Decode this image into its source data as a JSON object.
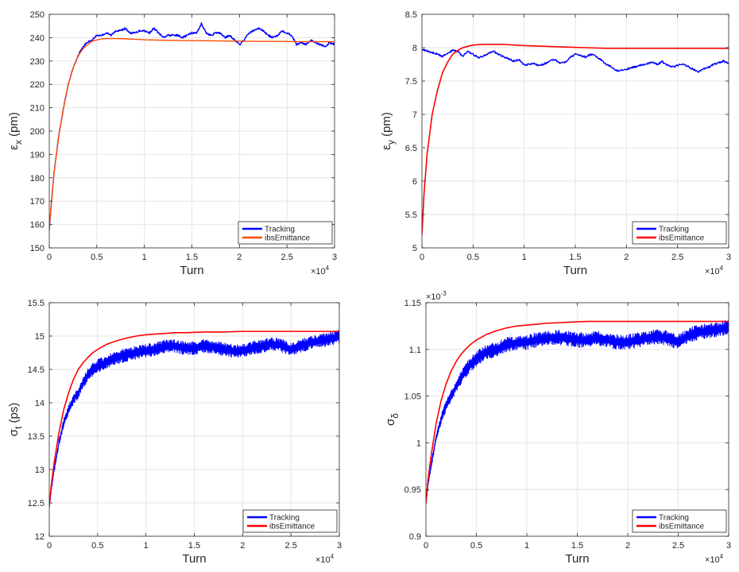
{
  "colors": {
    "tracking": "#0000ff",
    "ibs_red": "#ff0000",
    "ibs_orange": "#ff4a00",
    "axis": "#262626",
    "grid": "#e6e6e6"
  },
  "chart_data": [
    {
      "id": "ex",
      "type": "line",
      "title": "",
      "xlabel": "Turn",
      "ylabel_main": "ε",
      "ylabel_sub": "x",
      "ylabel_unit": " (pm)",
      "xlim": [
        0,
        30000
      ],
      "ylim": [
        150,
        250
      ],
      "x_ticks": [
        0,
        5000,
        10000,
        15000,
        20000,
        25000,
        30000
      ],
      "x_tick_labels": [
        "0",
        "0.5",
        "1",
        "1.5",
        "2",
        "2.5",
        "3"
      ],
      "y_ticks": [
        150,
        160,
        170,
        180,
        190,
        200,
        210,
        220,
        230,
        240,
        250
      ],
      "y_tick_labels": [
        "150",
        "160",
        "170",
        "180",
        "190",
        "200",
        "210",
        "220",
        "230",
        "240",
        "250"
      ],
      "x_exponent_base": "×10",
      "x_exponent_power": "4",
      "y_exponent_base": "",
      "y_exponent_power": "",
      "legend": [
        "Tracking",
        "ibsEmittance"
      ],
      "legend_position": "bottom-right",
      "series": [
        {
          "name": "Tracking",
          "color": "#0000ff",
          "width": 1.4,
          "x": [
            0,
            200,
            500,
            1000,
            1500,
            2000,
            2500,
            3000,
            3500,
            4000,
            4500,
            5000,
            5500,
            6000,
            6500,
            7000,
            7500,
            8000,
            8500,
            9000,
            9500,
            10000,
            10500,
            11000,
            11500,
            12000,
            12500,
            13000,
            13500,
            14000,
            14500,
            15000,
            15500,
            16000,
            16500,
            17000,
            17500,
            18000,
            18500,
            19000,
            19500,
            20000,
            20500,
            21000,
            21500,
            22000,
            22500,
            23000,
            23500,
            24000,
            24500,
            25000,
            25500,
            26000,
            26500,
            27000,
            27500,
            28000,
            28500,
            29000,
            29500,
            30000
          ],
          "y": [
            158,
            168,
            182,
            198,
            210,
            220,
            227,
            232,
            236,
            238,
            239,
            241,
            241,
            242,
            241,
            243,
            243,
            244,
            242,
            242,
            243,
            243,
            242,
            244,
            242,
            240,
            241,
            241,
            241,
            240,
            241,
            242,
            242,
            246,
            242,
            241,
            242,
            242,
            240,
            241,
            239,
            237,
            239,
            242,
            243,
            244,
            243,
            241,
            240,
            241,
            243,
            242,
            241,
            237,
            238,
            237,
            239,
            238,
            237,
            236,
            238,
            237
          ]
        },
        {
          "name": "ibsEmittance",
          "color": "#ff4a00",
          "width": 1.4,
          "x": [
            0,
            200,
            500,
            1000,
            1500,
            2000,
            2500,
            3000,
            3500,
            4000,
            4500,
            5000,
            5500,
            6000,
            7000,
            8000,
            9000,
            10000,
            12000,
            14000,
            16000,
            18000,
            20000,
            22000,
            24000,
            26000,
            28000,
            30000
          ],
          "y": [
            158,
            168,
            182,
            198,
            210,
            220,
            227,
            232,
            235,
            237,
            238.5,
            239,
            239.5,
            239.6,
            239.6,
            239.5,
            239.3,
            239.1,
            238.9,
            238.8,
            238.7,
            238.6,
            238.5,
            238.4,
            238.4,
            238.3,
            238.3,
            238.3
          ]
        }
      ]
    },
    {
      "id": "ey",
      "type": "line",
      "title": "",
      "xlabel": "Turn",
      "ylabel_main": "ε",
      "ylabel_sub": "y",
      "ylabel_unit": " (pm)",
      "xlim": [
        0,
        30000
      ],
      "ylim": [
        5,
        8.5
      ],
      "x_ticks": [
        0,
        5000,
        10000,
        15000,
        20000,
        25000,
        30000
      ],
      "x_tick_labels": [
        "0",
        "0.5",
        "1",
        "1.5",
        "2",
        "2.5",
        "3"
      ],
      "y_ticks": [
        5,
        5.5,
        6,
        6.5,
        7,
        7.5,
        8,
        8.5
      ],
      "y_tick_labels": [
        "5",
        "5.5",
        "6",
        "6.5",
        "7",
        "7.5",
        "8",
        "8.5"
      ],
      "x_exponent_base": "×10",
      "x_exponent_power": "4",
      "y_exponent_base": "",
      "y_exponent_power": "",
      "legend": [
        "Tracking",
        "ibsEmittance"
      ],
      "legend_position": "bottom-right",
      "series": [
        {
          "name": "Tracking",
          "color": "#0000ff",
          "width": 1.4,
          "x": [
            0,
            500,
            1000,
            1500,
            2000,
            2500,
            3000,
            3500,
            4000,
            4500,
            5000,
            5500,
            6000,
            6500,
            7000,
            7500,
            8000,
            8500,
            9000,
            9500,
            10000,
            10500,
            11000,
            11500,
            12000,
            12500,
            13000,
            13500,
            14000,
            14500,
            15000,
            15500,
            16000,
            16500,
            17000,
            17500,
            18000,
            18500,
            19000,
            19500,
            20000,
            20500,
            21000,
            21500,
            22000,
            22500,
            23000,
            23500,
            24000,
            24500,
            25000,
            25500,
            26000,
            26500,
            27000,
            27500,
            28000,
            28500,
            29000,
            29500,
            30000
          ],
          "y": [
            7.98,
            7.95,
            7.93,
            7.9,
            7.87,
            7.92,
            7.96,
            7.94,
            7.88,
            7.95,
            7.9,
            7.85,
            7.87,
            7.92,
            7.94,
            7.9,
            7.86,
            7.83,
            7.8,
            7.82,
            7.74,
            7.75,
            7.76,
            7.73,
            7.76,
            7.8,
            7.82,
            7.77,
            7.78,
            7.85,
            7.9,
            7.88,
            7.86,
            7.9,
            7.87,
            7.82,
            7.75,
            7.72,
            7.65,
            7.66,
            7.68,
            7.7,
            7.72,
            7.74,
            7.76,
            7.78,
            7.75,
            7.79,
            7.74,
            7.71,
            7.73,
            7.75,
            7.72,
            7.68,
            7.63,
            7.68,
            7.7,
            7.75,
            7.77,
            7.8,
            7.76
          ]
        },
        {
          "name": "ibsEmittance",
          "color": "#ff0000",
          "width": 1.6,
          "x": [
            0,
            200,
            500,
            1000,
            1500,
            2000,
            2500,
            3000,
            3500,
            4000,
            4500,
            5000,
            6000,
            7000,
            8000,
            9000,
            10000,
            12000,
            14000,
            16000,
            18000,
            20000,
            22000,
            24000,
            26000,
            28000,
            30000
          ],
          "y": [
            5.2,
            5.8,
            6.4,
            7.0,
            7.35,
            7.62,
            7.78,
            7.9,
            7.96,
            8.0,
            8.02,
            8.04,
            8.05,
            8.05,
            8.05,
            8.04,
            8.03,
            8.02,
            8.01,
            8.0,
            7.99,
            7.99,
            7.99,
            7.99,
            7.99,
            7.99,
            7.99
          ]
        }
      ]
    },
    {
      "id": "st",
      "type": "line",
      "title": "",
      "xlabel": "Turn",
      "ylabel_main": "σ",
      "ylabel_sub": "t",
      "ylabel_unit": " (ps)",
      "xlim": [
        0,
        30000
      ],
      "ylim": [
        12,
        15.5
      ],
      "x_ticks": [
        0,
        5000,
        10000,
        15000,
        20000,
        25000,
        30000
      ],
      "x_tick_labels": [
        "0",
        "0.5",
        "1",
        "1.5",
        "2",
        "2.5",
        "3"
      ],
      "y_ticks": [
        12,
        12.5,
        13,
        13.5,
        14,
        14.5,
        15,
        15.5
      ],
      "y_tick_labels": [
        "12",
        "12.5",
        "13",
        "13.5",
        "14",
        "14.5",
        "15",
        "15.5"
      ],
      "x_exponent_base": "×10",
      "x_exponent_power": "4",
      "y_exponent_base": "",
      "y_exponent_power": "",
      "legend": [
        "Tracking",
        "ibsEmittance"
      ],
      "legend_position": "bottom-right",
      "noise_amp": 0.1,
      "series": [
        {
          "name": "Tracking",
          "color": "#0000ff",
          "width": 1.0,
          "x": [
            0,
            200,
            500,
            1000,
            1500,
            2000,
            2500,
            3000,
            3500,
            4000,
            4500,
            5000,
            6000,
            7000,
            8000,
            9000,
            10000,
            11000,
            12000,
            13000,
            14000,
            15000,
            16000,
            17000,
            18000,
            19000,
            20000,
            21000,
            22000,
            23000,
            24000,
            25000,
            26000,
            27000,
            28000,
            29000,
            30000
          ],
          "y": [
            12.45,
            12.7,
            13.0,
            13.4,
            13.7,
            13.9,
            14.05,
            14.15,
            14.3,
            14.42,
            14.5,
            14.55,
            14.62,
            14.68,
            14.72,
            14.75,
            14.78,
            14.8,
            14.85,
            14.85,
            14.82,
            14.82,
            14.85,
            14.84,
            14.8,
            14.78,
            14.78,
            14.82,
            14.85,
            14.88,
            14.86,
            14.8,
            14.85,
            14.9,
            14.93,
            14.96,
            14.99
          ]
        },
        {
          "name": "ibsEmittance",
          "color": "#ff0000",
          "width": 1.6,
          "x": [
            0,
            200,
            500,
            1000,
            1500,
            2000,
            2500,
            3000,
            3500,
            4000,
            4500,
            5000,
            6000,
            7000,
            8000,
            9000,
            10000,
            11000,
            12000,
            13000,
            14000,
            16000,
            18000,
            20000,
            22000,
            24000,
            26000,
            28000,
            30000
          ],
          "y": [
            12.45,
            12.75,
            13.1,
            13.55,
            13.9,
            14.15,
            14.35,
            14.5,
            14.6,
            14.68,
            14.75,
            14.8,
            14.88,
            14.93,
            14.97,
            15.0,
            15.02,
            15.03,
            15.04,
            15.05,
            15.05,
            15.06,
            15.06,
            15.07,
            15.07,
            15.07,
            15.07,
            15.07,
            15.07
          ]
        }
      ]
    },
    {
      "id": "sd",
      "type": "line",
      "title": "",
      "xlabel": "Turn",
      "ylabel_main": "σ",
      "ylabel_sub": "δ",
      "ylabel_unit": "",
      "xlim": [
        0,
        30000
      ],
      "ylim": [
        0.9,
        1.15
      ],
      "x_ticks": [
        0,
        5000,
        10000,
        15000,
        20000,
        25000,
        30000
      ],
      "x_tick_labels": [
        "0",
        "0.5",
        "1",
        "1.5",
        "2",
        "2.5",
        "3"
      ],
      "y_ticks": [
        0.9,
        0.95,
        1.0,
        1.05,
        1.1,
        1.15
      ],
      "y_tick_labels": [
        "0.9",
        "0.95",
        "1",
        "1.05",
        "1.1",
        "1.15"
      ],
      "x_exponent_base": "×10",
      "x_exponent_power": "4",
      "y_exponent_base": "×10",
      "y_exponent_power": "-3",
      "legend": [
        "Tracking",
        "ibsEmittance"
      ],
      "legend_position": "bottom-right",
      "noise_amp": 0.008,
      "series": [
        {
          "name": "Tracking",
          "color": "#0000ff",
          "width": 1.0,
          "x": [
            0,
            200,
            500,
            1000,
            1500,
            2000,
            2500,
            3000,
            3500,
            4000,
            4500,
            5000,
            6000,
            7000,
            8000,
            9000,
            10000,
            11000,
            12000,
            13000,
            14000,
            15000,
            16000,
            17000,
            18000,
            19000,
            20000,
            21000,
            22000,
            23000,
            24000,
            25000,
            26000,
            27000,
            28000,
            29000,
            30000
          ],
          "y": [
            0.935,
            0.955,
            0.975,
            1.005,
            1.025,
            1.04,
            1.05,
            1.06,
            1.07,
            1.078,
            1.085,
            1.09,
            1.097,
            1.1,
            1.105,
            1.107,
            1.108,
            1.11,
            1.112,
            1.113,
            1.112,
            1.11,
            1.11,
            1.112,
            1.11,
            1.108,
            1.108,
            1.11,
            1.112,
            1.114,
            1.112,
            1.108,
            1.115,
            1.118,
            1.12,
            1.122,
            1.124
          ]
        },
        {
          "name": "ibsEmittance",
          "color": "#ff0000",
          "width": 1.6,
          "x": [
            0,
            200,
            500,
            1000,
            1500,
            2000,
            2500,
            3000,
            3500,
            4000,
            4500,
            5000,
            6000,
            7000,
            8000,
            9000,
            10000,
            11000,
            12000,
            14000,
            16000,
            18000,
            20000,
            22000,
            24000,
            26000,
            28000,
            30000
          ],
          "y": [
            0.935,
            0.96,
            0.985,
            1.02,
            1.045,
            1.063,
            1.077,
            1.087,
            1.095,
            1.101,
            1.106,
            1.11,
            1.116,
            1.12,
            1.123,
            1.125,
            1.126,
            1.127,
            1.128,
            1.129,
            1.13,
            1.13,
            1.13,
            1.13,
            1.13,
            1.13,
            1.13,
            1.13
          ]
        }
      ]
    }
  ]
}
